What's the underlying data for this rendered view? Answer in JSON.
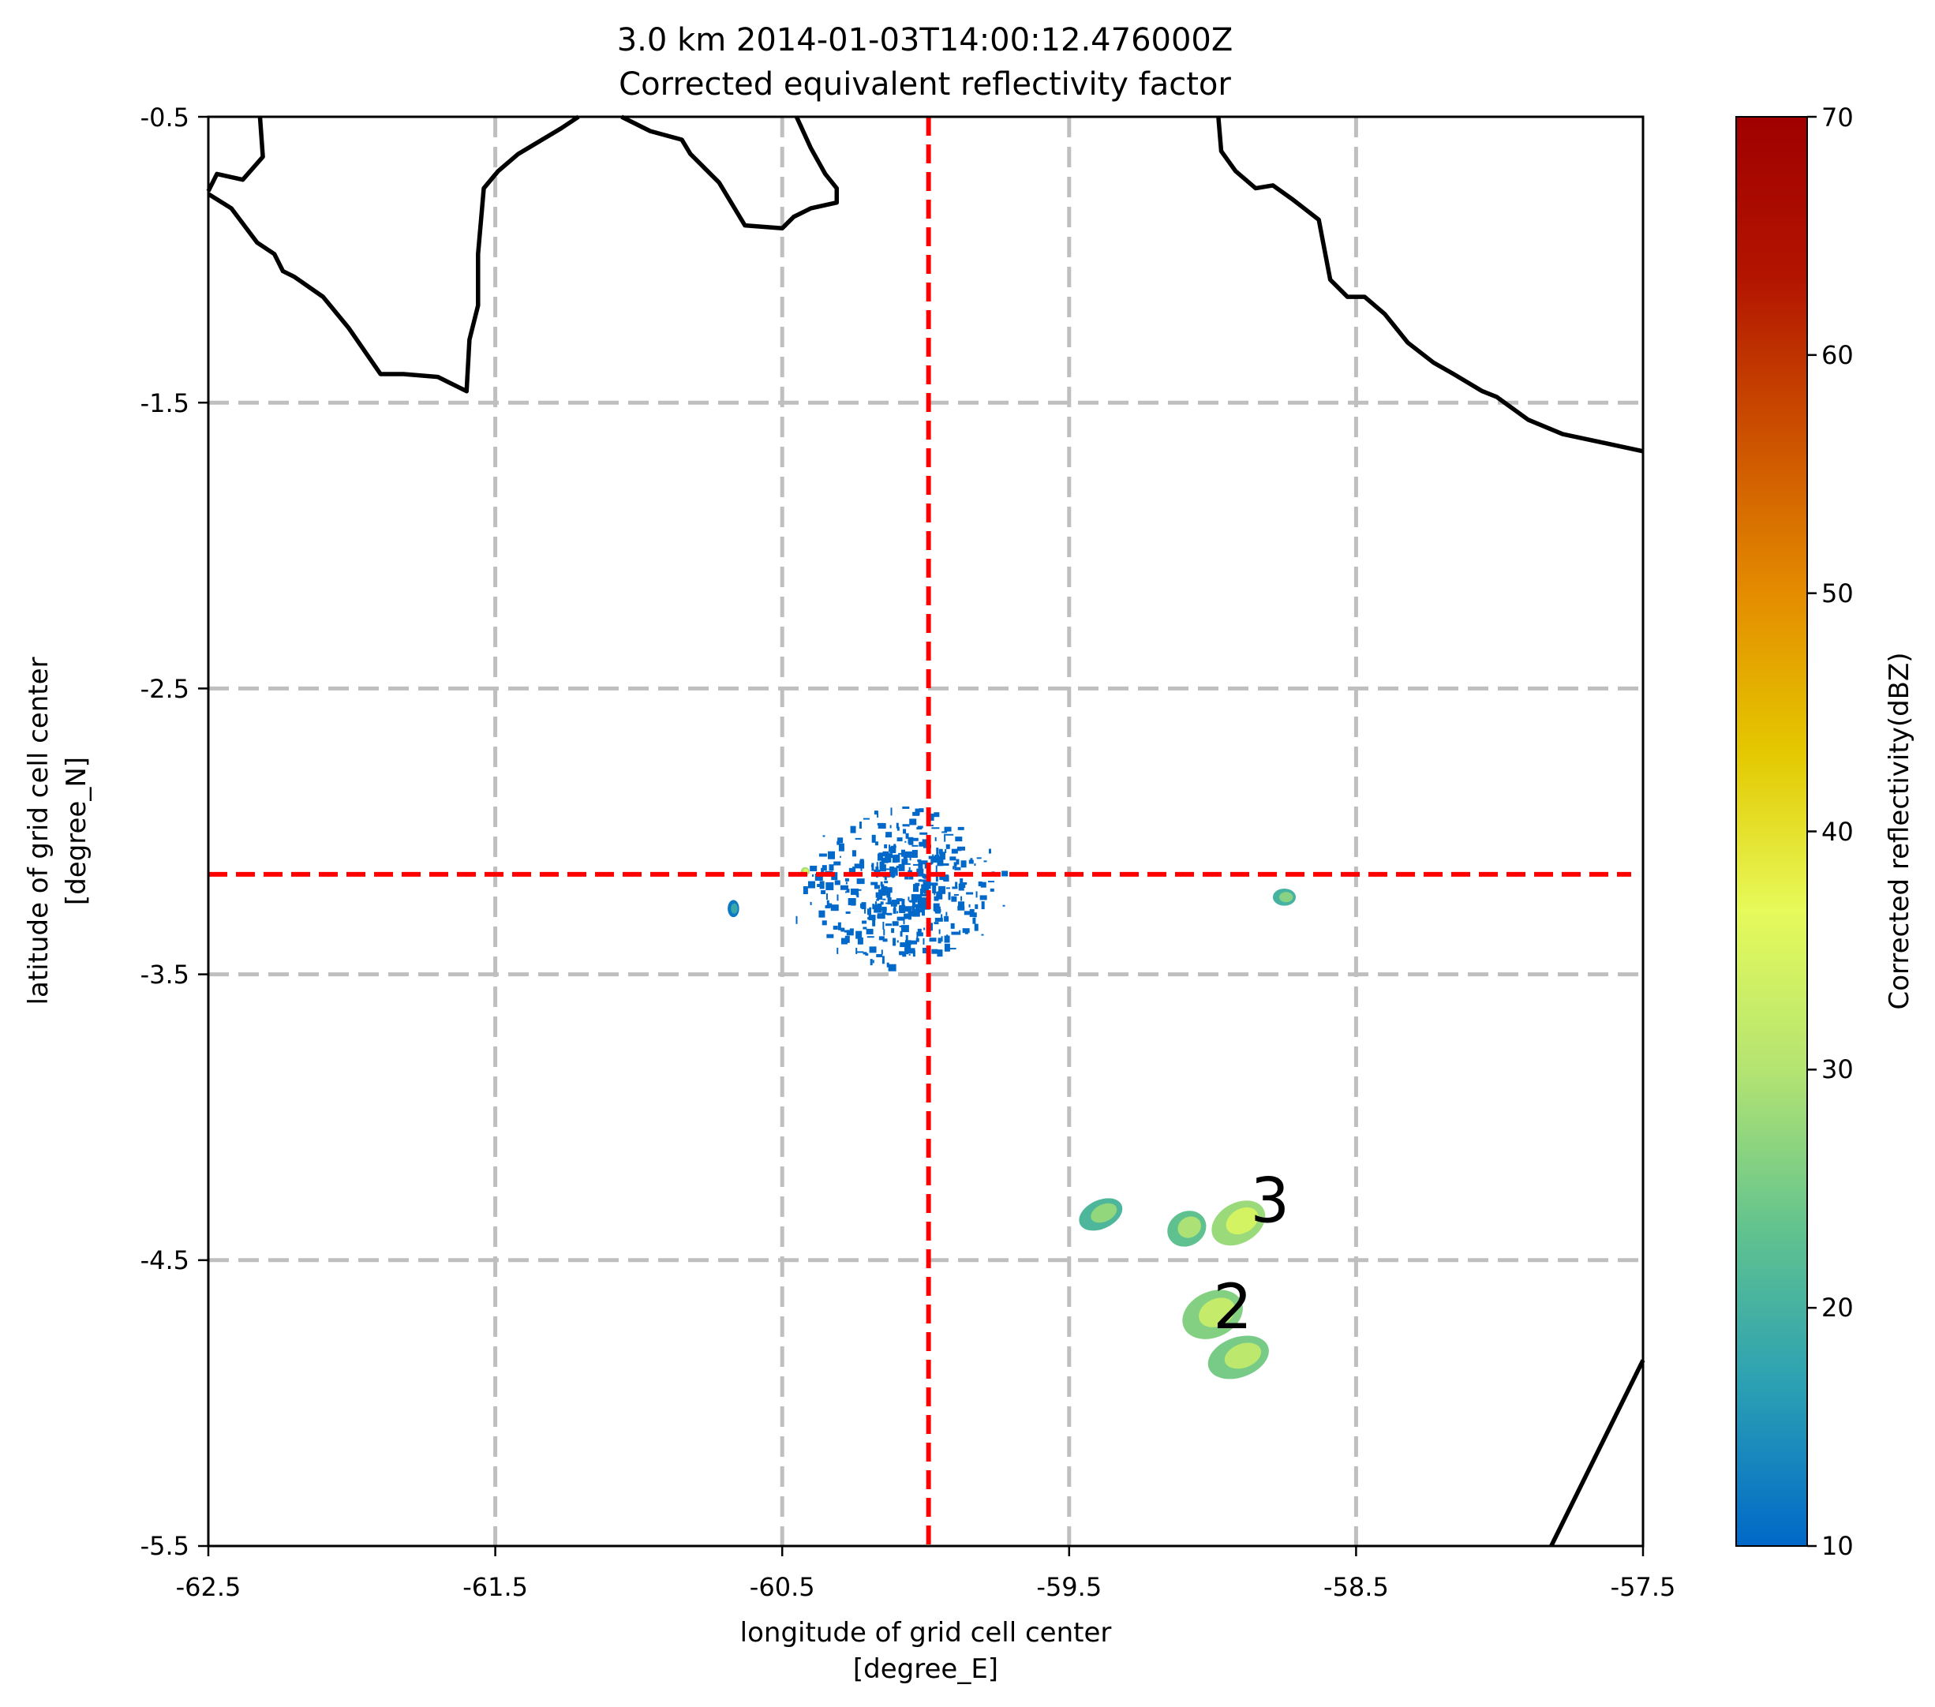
{
  "chart_data": {
    "type": "heatmap",
    "title": "3.0 km 2014-01-03T14:00:12.476000Z",
    "subtitle": "Corrected equivalent reflectivity factor",
    "xlabel": "longitude of grid cell center",
    "xunit": "[degree_E]",
    "ylabel": "latitude of grid cell center",
    "yunit": "[degree_N]",
    "xlim": [
      -62.5,
      -57.5
    ],
    "ylim": [
      -5.5,
      -0.5
    ],
    "xticks": [
      "-62.5",
      "-61.5",
      "-60.5",
      "-59.5",
      "-58.5",
      "-57.5"
    ],
    "yticks": [
      "-0.5",
      "-1.5",
      "-2.5",
      "-3.5",
      "-4.5",
      "-5.5"
    ],
    "grid": true,
    "grid_lon": [
      -61.5,
      -60.5,
      -59.5,
      -58.5
    ],
    "grid_lat": [
      -1.5,
      -2.5,
      -3.5,
      -4.5
    ],
    "crosshair": {
      "lon": -59.99,
      "lat": -3.15,
      "color": "#ff0000"
    },
    "colorbar": {
      "label": "Corrected reflectivity(dBZ)",
      "min": 10,
      "max": 70,
      "ticks": [
        "10",
        "20",
        "30",
        "40",
        "50",
        "60",
        "70"
      ],
      "colors": [
        "#0068c8",
        "#2aa0b4",
        "#62c38e",
        "#b4e472",
        "#e6fa5a",
        "#e4c800",
        "#e48c00",
        "#cc5000",
        "#b21400",
        "#a00000"
      ]
    },
    "coastlines": [
      [
        [
          -62.5,
          -0.76
        ],
        [
          -62.47,
          -0.7
        ],
        [
          -62.38,
          -0.72
        ],
        [
          -62.31,
          -0.64
        ],
        [
          -62.32,
          -0.5
        ]
      ],
      [
        [
          -62.5,
          -0.77
        ],
        [
          -62.42,
          -0.82
        ],
        [
          -62.33,
          -0.94
        ],
        [
          -62.27,
          -0.98
        ],
        [
          -62.24,
          -1.04
        ],
        [
          -62.2,
          -1.06
        ],
        [
          -62.1,
          -1.13
        ],
        [
          -62.01,
          -1.24
        ],
        [
          -61.9,
          -1.4
        ],
        [
          -61.82,
          -1.4
        ],
        [
          -61.7,
          -1.41
        ],
        [
          -61.6,
          -1.46
        ],
        [
          -61.59,
          -1.28
        ],
        [
          -61.56,
          -1.16
        ],
        [
          -61.56,
          -0.98
        ],
        [
          -61.54,
          -0.75
        ],
        [
          -61.49,
          -0.69
        ],
        [
          -61.42,
          -0.63
        ],
        [
          -61.27,
          -0.54
        ],
        [
          -61.21,
          -0.5
        ]
      ],
      [
        [
          -61.06,
          -0.5
        ],
        [
          -60.96,
          -0.55
        ],
        [
          -60.85,
          -0.58
        ],
        [
          -60.82,
          -0.63
        ],
        [
          -60.72,
          -0.73
        ],
        [
          -60.63,
          -0.88
        ],
        [
          -60.5,
          -0.89
        ],
        [
          -60.46,
          -0.85
        ],
        [
          -60.4,
          -0.82
        ],
        [
          -60.31,
          -0.8
        ],
        [
          -60.31,
          -0.75
        ],
        [
          -60.35,
          -0.7
        ],
        [
          -60.4,
          -0.61
        ],
        [
          -60.45,
          -0.5
        ]
      ],
      [
        [
          -58.98,
          -0.5
        ],
        [
          -58.97,
          -0.62
        ],
        [
          -58.92,
          -0.69
        ],
        [
          -58.85,
          -0.75
        ],
        [
          -58.79,
          -0.74
        ],
        [
          -58.72,
          -0.79
        ],
        [
          -58.63,
          -0.86
        ],
        [
          -58.59,
          -1.07
        ],
        [
          -58.53,
          -1.13
        ],
        [
          -58.47,
          -1.13
        ],
        [
          -58.4,
          -1.19
        ],
        [
          -58.36,
          -1.24
        ],
        [
          -58.32,
          -1.29
        ],
        [
          -58.23,
          -1.36
        ],
        [
          -58.16,
          -1.4
        ],
        [
          -58.06,
          -1.46
        ],
        [
          -58.01,
          -1.48
        ],
        [
          -57.9,
          -1.56
        ],
        [
          -57.78,
          -1.61
        ],
        [
          -57.5,
          -1.67
        ]
      ],
      [
        [
          -57.82,
          -5.5
        ],
        [
          -57.5,
          -4.85
        ]
      ]
    ],
    "cells": [
      {
        "lon": -59.39,
        "lat": -4.34,
        "rx": 0.08,
        "ry": 0.05,
        "angle": -25,
        "dbz": 25
      },
      {
        "lon": -59.09,
        "lat": -4.39,
        "rx": 0.07,
        "ry": 0.06,
        "angle": -30,
        "dbz": 27
      },
      {
        "lon": -58.91,
        "lat": -4.37,
        "rx": 0.1,
        "ry": 0.07,
        "angle": -30,
        "dbz": 32
      },
      {
        "lon": -59.0,
        "lat": -4.69,
        "rx": 0.11,
        "ry": 0.08,
        "angle": -25,
        "dbz": 30
      },
      {
        "lon": -58.91,
        "lat": -4.84,
        "rx": 0.11,
        "ry": 0.07,
        "angle": -20,
        "dbz": 29
      },
      {
        "lon": -58.75,
        "lat": -3.23,
        "rx": 0.04,
        "ry": 0.03,
        "angle": 0,
        "dbz": 24
      },
      {
        "lon": -60.67,
        "lat": -3.27,
        "rx": 0.02,
        "ry": 0.03,
        "angle": 0,
        "dbz": 16
      },
      {
        "lon": -60.42,
        "lat": -3.14,
        "rx": 0.015,
        "ry": 0.015,
        "angle": 0,
        "dbz": 33
      }
    ],
    "clutter": {
      "lon": -60.05,
      "lat": -3.19,
      "dbz": 10
    },
    "annotations": [
      {
        "text": "3",
        "lon": -58.8,
        "lat": -4.29
      },
      {
        "text": "2",
        "lon": -58.93,
        "lat": -4.66
      }
    ]
  }
}
